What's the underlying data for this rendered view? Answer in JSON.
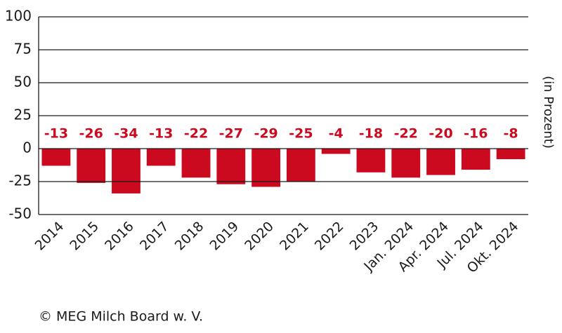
{
  "chart_data": {
    "type": "bar",
    "y_label": "(in Prozent)",
    "source": "© MEG Milch Board w. V.",
    "categories": [
      "2014",
      "2015",
      "2016",
      "2017",
      "2018",
      "2019",
      "2020",
      "2021",
      "2022",
      "2023",
      "Jan. 2024",
      "Apr. 2024",
      "Jul. 2024",
      "Okt. 2024"
    ],
    "values": [
      -13,
      -26,
      -34,
      -13,
      -22,
      -27,
      -29,
      -25,
      -4,
      -18,
      -22,
      -20,
      -16,
      -8
    ],
    "color": "#cc0a1f",
    "ylim": [
      -50,
      100
    ],
    "yticks": [
      -50,
      -25,
      0,
      25,
      50,
      75,
      100
    ],
    "grid": true
  }
}
